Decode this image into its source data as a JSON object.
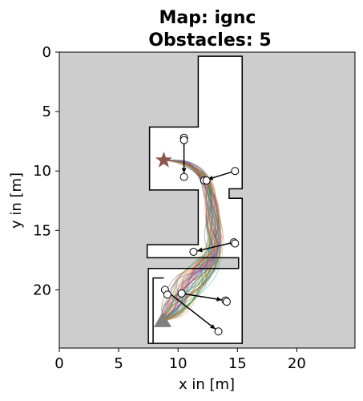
{
  "chart_data": {
    "type": "map",
    "title_line1": "Map: ignc",
    "title_line2": "Obstacles: 5",
    "xlabel": "x in [m]",
    "ylabel": "y in [m]",
    "xlim": [
      0,
      24.9
    ],
    "ylim": [
      24.9,
      0
    ],
    "y_inverted": true,
    "xticks": [
      0,
      5,
      10,
      15,
      20
    ],
    "yticks": [
      0,
      5,
      10,
      15,
      20
    ],
    "background_color": "#cdcdcd",
    "free_space_color": "#ffffff",
    "free_space_polygon": [
      [
        11.7,
        0.35
      ],
      [
        15.4,
        0.35
      ],
      [
        15.4,
        11.5
      ],
      [
        14.3,
        11.5
      ],
      [
        14.3,
        12.3
      ],
      [
        15.4,
        12.3
      ],
      [
        15.4,
        24.5
      ],
      [
        7.5,
        24.5
      ],
      [
        7.5,
        18.2
      ],
      [
        15.1,
        18.2
      ],
      [
        15.1,
        17.3
      ],
      [
        7.4,
        17.3
      ],
      [
        7.4,
        16.2
      ],
      [
        11.7,
        16.2
      ],
      [
        11.7,
        11.6
      ],
      [
        7.6,
        11.6
      ],
      [
        7.6,
        6.3
      ],
      [
        11.7,
        6.3
      ]
    ],
    "inner_wall_polyline": [
      [
        7.9,
        24.5
      ],
      [
        7.9,
        19.0
      ],
      [
        8.8,
        19.0
      ]
    ],
    "goal": {
      "x": 8.8,
      "y": 9.1,
      "color": "#8c564b",
      "marker": "star"
    },
    "start": {
      "x": 8.7,
      "y": 22.6,
      "color": "#808080",
      "marker": "triangle"
    },
    "obstacles": [
      {
        "path": [
          [
            10.5,
            7.2
          ],
          [
            10.5,
            10.5
          ]
        ]
      },
      {
        "path": [
          [
            14.8,
            10.0
          ],
          [
            12.2,
            10.8
          ]
        ]
      },
      {
        "path": [
          [
            14.7,
            16.0
          ],
          [
            11.3,
            16.8
          ]
        ]
      },
      {
        "path": [
          [
            10.3,
            20.3
          ],
          [
            14.0,
            20.9
          ]
        ]
      },
      {
        "path": [
          [
            8.9,
            20.0
          ],
          [
            13.4,
            23.5
          ]
        ]
      }
    ],
    "extra_circles": [
      {
        "x": 10.5,
        "y": 7.4
      },
      {
        "x": 12.4,
        "y": 10.8
      },
      {
        "x": 14.8,
        "y": 16.1
      },
      {
        "x": 14.1,
        "y": 21.0
      },
      {
        "x": 9.1,
        "y": 20.4
      }
    ],
    "trajectory_colors": [
      "#1f77b4",
      "#ff7f0e",
      "#2ca02c",
      "#d62728",
      "#9467bd",
      "#8c564b",
      "#e377c2",
      "#17becf",
      "#bcbd22"
    ],
    "trajectory_count": 60
  }
}
